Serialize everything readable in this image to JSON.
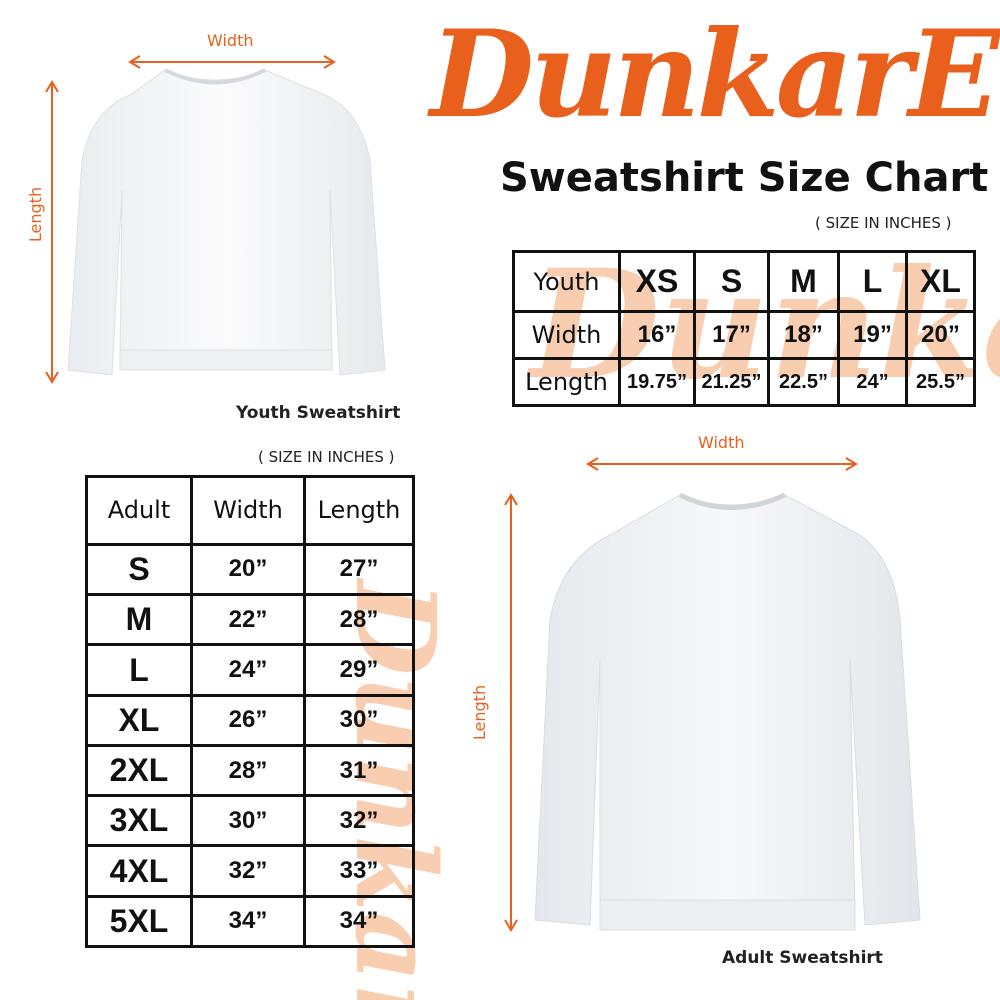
{
  "brand": {
    "logo_text": "DunkarE",
    "color": "#e8601c"
  },
  "title": "Sweatshirt Size Chart",
  "youth": {
    "unit_note": "( SIZE IN INCHES )",
    "caption": "Youth Sweatshirt",
    "width_label": "Width",
    "length_label": "Length",
    "table": {
      "header": [
        "Youth",
        "XS",
        "S",
        "M",
        "L",
        "XL"
      ],
      "rows": [
        [
          "Width",
          "16”",
          "17”",
          "18”",
          "19”",
          "20”"
        ],
        [
          "Length",
          "19.75”",
          "21.25”",
          "22.5”",
          "24”",
          "25.5”"
        ]
      ]
    }
  },
  "adult": {
    "unit_note": "( SIZE IN INCHES )",
    "caption": "Adult Sweatshirt",
    "width_label": "Width",
    "length_label": "Length",
    "table": {
      "header": [
        "Adult",
        "Width",
        "Length"
      ],
      "rows": [
        [
          "S",
          "20”",
          "27”"
        ],
        [
          "M",
          "22”",
          "28”"
        ],
        [
          "L",
          "24”",
          "29”"
        ],
        [
          "XL",
          "26”",
          "30”"
        ],
        [
          "2XL",
          "28”",
          "31”"
        ],
        [
          "3XL",
          "30”",
          "32”"
        ],
        [
          "4XL",
          "32”",
          "33”"
        ],
        [
          "5XL",
          "34”",
          "34”"
        ]
      ]
    }
  }
}
